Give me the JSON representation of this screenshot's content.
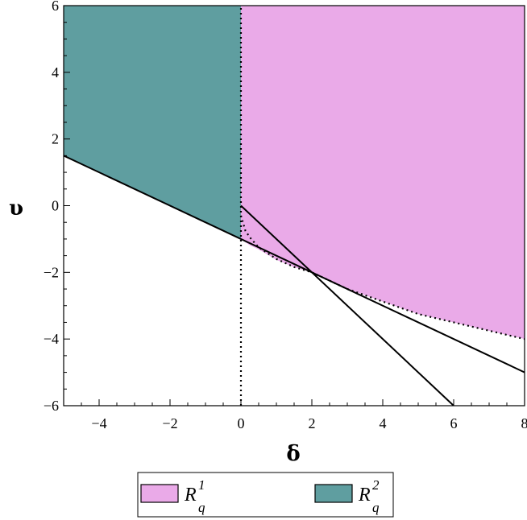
{
  "chart_data": {
    "type": "area",
    "xlabel": "δ",
    "ylabel": "υ",
    "xlim": [
      -5,
      8
    ],
    "ylim": [
      -6,
      6
    ],
    "xticks": [
      -4,
      -2,
      0,
      2,
      4,
      6,
      8
    ],
    "yticks": [
      -6,
      -4,
      -2,
      0,
      2,
      4,
      6
    ],
    "xtick_labels": [
      "−4",
      "−2",
      "0",
      "2",
      "4",
      "6",
      "8"
    ],
    "ytick_labels": [
      "−6",
      "−4",
      "−2",
      "0",
      "2",
      "4",
      "6"
    ],
    "grid": false,
    "legend_position": "bottom",
    "regions": [
      {
        "legend_symbol": "R",
        "legend_sub": "q",
        "legend_sup": "1",
        "color": "#EAAAE8",
        "boundary_x": [
          0,
          0.125,
          0.25,
          0.5,
          1,
          1.5,
          2,
          2.5,
          3,
          4,
          5,
          6,
          7,
          8
        ],
        "boundary_y": [
          -1.0,
          -1.1,
          -1.1875,
          -1.3125,
          -1.625,
          -1.8438,
          -2.0,
          -2.25,
          -2.5,
          -2.875,
          -3.25,
          -3.5,
          -3.75,
          -4.0
        ]
      },
      {
        "legend_symbol": "R",
        "legend_sub": "q",
        "legend_sup": "2",
        "color": "#5F9EA0",
        "boundary_x": [
          -5,
          0
        ],
        "boundary_y": [
          1.5,
          -1.0
        ]
      }
    ],
    "lines": [
      {
        "style": "solid",
        "x": [
          -5,
          8
        ],
        "y": [
          1.5,
          -5.0
        ]
      },
      {
        "style": "solid",
        "x": [
          0,
          6
        ],
        "y": [
          0,
          -6
        ]
      },
      {
        "style": "dotted",
        "x": [
          0,
          0
        ],
        "y": [
          -6,
          6
        ]
      },
      {
        "style": "dotted",
        "x": [
          0,
          0.125,
          0.25,
          0.5,
          1,
          1.5,
          2,
          2.5,
          3,
          4,
          5,
          6,
          7,
          8
        ],
        "y": [
          -0.3,
          -0.75,
          -0.95,
          -1.25,
          -1.6,
          -1.84,
          -2.0,
          -2.25,
          -2.5,
          -2.875,
          -3.25,
          -3.5,
          -3.75,
          -4.0
        ]
      }
    ],
    "colors": {
      "axis": "#000000",
      "lines": "#000000"
    }
  }
}
